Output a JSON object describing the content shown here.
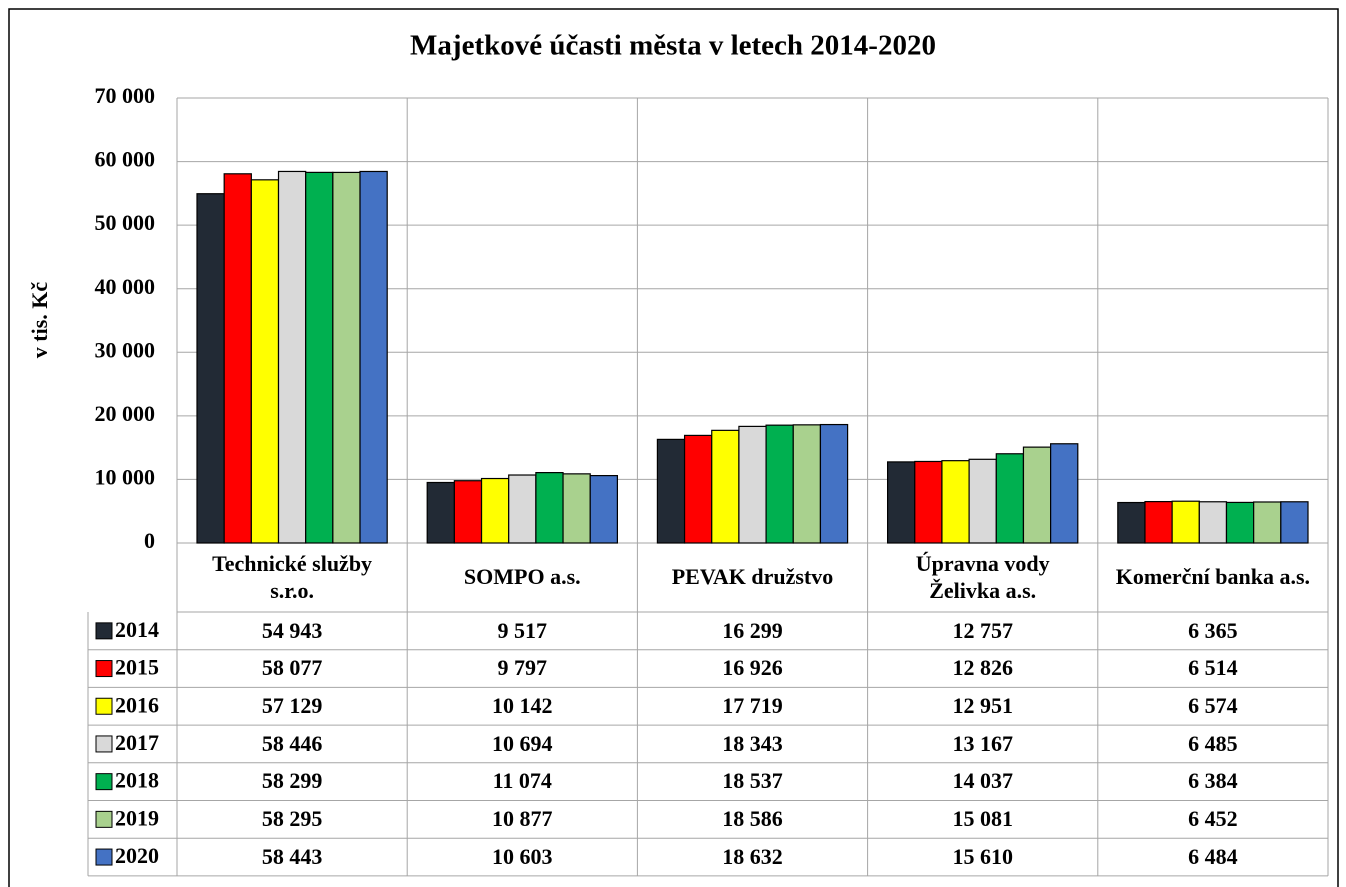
{
  "chart_data": {
    "type": "bar",
    "title": "Majetkové účasti města v letech 2014-2020",
    "y_label": "v tis. Kč",
    "categories": [
      "Technické služby s.r.o.",
      "SOMPO a.s.",
      "PEVAK družstvo",
      "Úpravna vody Želivka a.s.",
      "Komerční banka a.s."
    ],
    "series": [
      {
        "name": "2014",
        "color": "#222a35",
        "values": [
          54943,
          9517,
          16299,
          12757,
          6365
        ],
        "value_labels": [
          "54 943",
          "9 517",
          "16 299",
          "12 757",
          "6 365"
        ]
      },
      {
        "name": "2015",
        "color": "#ff0000",
        "values": [
          58077,
          9797,
          16926,
          12826,
          6514
        ],
        "value_labels": [
          "58 077",
          "9 797",
          "16 926",
          "12 826",
          "6 514"
        ]
      },
      {
        "name": "2016",
        "color": "#ffff00",
        "values": [
          57129,
          10142,
          17719,
          12951,
          6574
        ],
        "value_labels": [
          "57 129",
          "10 142",
          "17 719",
          "12 951",
          "6 574"
        ]
      },
      {
        "name": "2017",
        "color": "#d9d9d9",
        "values": [
          58446,
          10694,
          18343,
          13167,
          6485
        ],
        "value_labels": [
          "58 446",
          "10 694",
          "18 343",
          "13 167",
          "6 485"
        ]
      },
      {
        "name": "2018",
        "color": "#00b050",
        "values": [
          58299,
          11074,
          18537,
          14037,
          6384
        ],
        "value_labels": [
          "58 299",
          "11 074",
          "18 537",
          "14 037",
          "6 384"
        ]
      },
      {
        "name": "2019",
        "color": "#a9d18e",
        "values": [
          58295,
          10877,
          18586,
          15081,
          6452
        ],
        "value_labels": [
          "58 295",
          "10 877",
          "18 586",
          "15 081",
          "6 452"
        ]
      },
      {
        "name": "2020",
        "color": "#4472c4",
        "values": [
          58443,
          10603,
          18632,
          15610,
          6484
        ],
        "value_labels": [
          "58 443",
          "10 603",
          "18 632",
          "15 610",
          "6 484"
        ]
      }
    ],
    "ylim": [
      0,
      70000
    ],
    "yticks": [
      0,
      {
        "value": 10000,
        "label": "10 000"
      },
      {
        "value": 20000,
        "label": "20 000"
      },
      {
        "value": 30000,
        "label": "30 000"
      },
      {
        "value": 40000,
        "label": "40 000"
      },
      {
        "value": 50000,
        "label": "50 000"
      },
      {
        "value": 60000,
        "label": "60 000"
      },
      {
        "value": 70000,
        "label": "70 000"
      }
    ],
    "grid": true
  }
}
